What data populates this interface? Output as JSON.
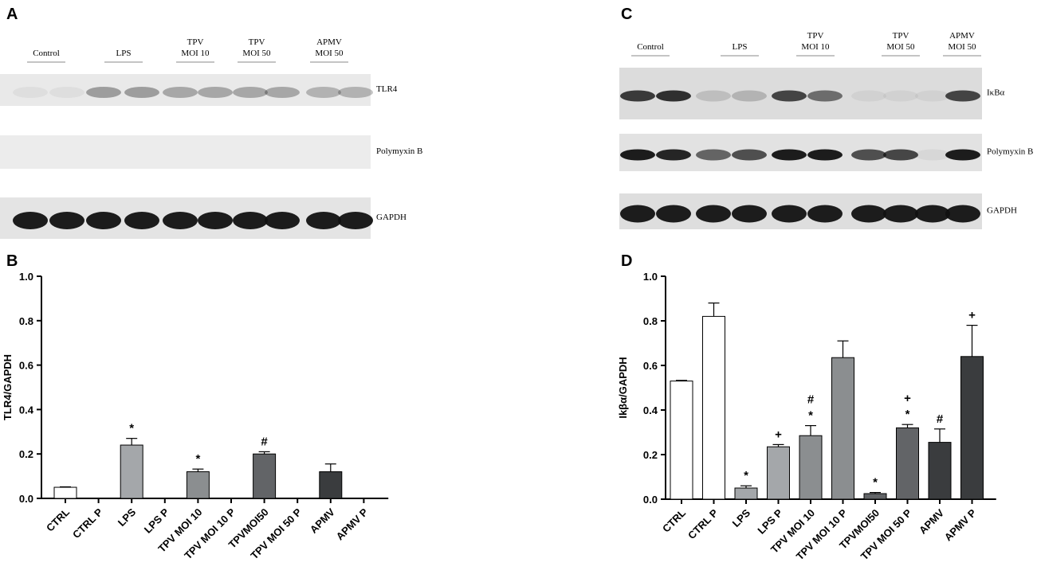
{
  "blots": [
    {
      "panel": "A",
      "lanes": [
        [
          "Control"
        ],
        [
          "LPS"
        ],
        [
          "TPV",
          "MOI 10"
        ],
        [
          "TPV",
          "MOI 50"
        ],
        [
          "APMV",
          "MOI 50"
        ]
      ],
      "rows": [
        "TLR4",
        "Polymyxin B",
        "GAPDH"
      ]
    },
    {
      "panel": "C",
      "lanes": [
        [
          "Control"
        ],
        [
          "LPS"
        ],
        [
          "TPV",
          "MOI 10"
        ],
        [
          "TPV",
          "MOI 50"
        ],
        [
          "APMV",
          "MOI 50"
        ]
      ],
      "rows": [
        "IκBα",
        "Polymyxin B",
        "GAPDH"
      ]
    }
  ],
  "chart_data": [
    {
      "type": "bar",
      "panel": "B",
      "y_label": "TLR4/GAPDH",
      "categories": [
        "CTRL",
        "CTRL P",
        "LPS",
        "LPS P",
        "TPV MOI 10",
        "TPV MOI 10 P",
        "TPVMOI50",
        "TPV MOI 50 P",
        "APMV",
        "APMV P"
      ],
      "values": [
        0.05,
        null,
        0.24,
        null,
        0.12,
        null,
        0.2,
        null,
        0.12,
        null
      ],
      "errors": [
        0.002,
        null,
        0.03,
        null,
        0.012,
        null,
        0.01,
        null,
        0.035,
        null
      ],
      "colors": [
        "#ffffff",
        "#ffffff",
        "#a4a7aa",
        "#a4a7aa",
        "#8b8e90",
        "#8b8e90",
        "#626467",
        "#626467",
        "#3a3c3e",
        "#3a3c3e"
      ],
      "annotations": [
        null,
        null,
        [
          "*"
        ],
        null,
        [
          "*"
        ],
        null,
        [
          "#"
        ],
        null,
        null,
        null
      ],
      "ylim": [
        0,
        1
      ],
      "yticks": [
        {
          "value": 0,
          "label": "0.0"
        },
        {
          "value": 0.2,
          "label": "0.2"
        },
        {
          "value": 0.4,
          "label": "0.4"
        },
        {
          "value": 0.6,
          "label": "0.6"
        },
        {
          "value": 0.8,
          "label": "0.8"
        },
        {
          "value": 1,
          "label": "1.0"
        }
      ]
    },
    {
      "type": "bar",
      "panel": "D",
      "y_label": "Ikβα/GAPDH",
      "categories": [
        "CTRL",
        "CTRL P",
        "LPS",
        "LPS P",
        "TPV MOI 10",
        "TPV MOI 10 P",
        "TPVMOI50",
        "TPV MOI 50 P",
        "APMV",
        "APMV P"
      ],
      "values": [
        0.53,
        0.82,
        0.05,
        0.235,
        0.285,
        0.635,
        0.025,
        0.32,
        0.255,
        0.64
      ],
      "errors": [
        0.003,
        0.06,
        0.01,
        0.01,
        0.045,
        0.075,
        0.005,
        0.015,
        0.06,
        0.14
      ],
      "colors": [
        "#ffffff",
        "#ffffff",
        "#a4a7aa",
        "#a4a7aa",
        "#8b8e90",
        "#8b8e90",
        "#626467",
        "#626467",
        "#3a3c3e",
        "#3a3c3e"
      ],
      "annotations": [
        null,
        null,
        [
          "*"
        ],
        [
          "+"
        ],
        [
          "*",
          "#"
        ],
        null,
        [
          "*"
        ],
        [
          "*",
          "+"
        ],
        [
          "#"
        ],
        [
          "+"
        ]
      ],
      "ylim": [
        0,
        1
      ],
      "yticks": [
        {
          "value": 0,
          "label": "0.0"
        },
        {
          "value": 0.2,
          "label": "0.2"
        },
        {
          "value": 0.4,
          "label": "0.4"
        },
        {
          "value": 0.6,
          "label": "0.6"
        },
        {
          "value": 0.8,
          "label": "0.8"
        },
        {
          "value": 1,
          "label": "1.0"
        }
      ]
    }
  ]
}
